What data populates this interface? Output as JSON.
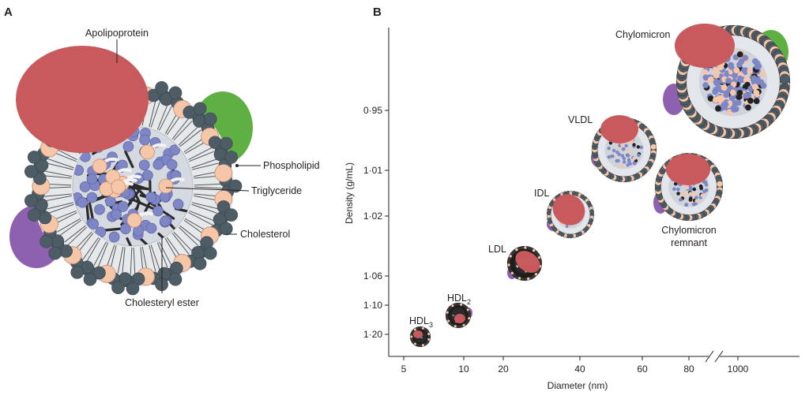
{
  "panels": {
    "a": "A",
    "b": "B"
  },
  "panel_a": {
    "labels": {
      "apolipoprotein": "Apolipoprotein",
      "phospholipid": "Phospholipid",
      "triglyceride": "Triglyceride",
      "cholesterol": "Cholesterol",
      "cholesteryl_ester": "Cholesteryl ester"
    }
  },
  "chart_data": {
    "type": "scatter",
    "xlabel": "Diameter (nm)",
    "ylabel": "Density (g/mL)",
    "x_ticks": [
      "5",
      "10",
      "20",
      "40",
      "60",
      "80",
      "1000"
    ],
    "y_ticks": [
      "0·95",
      "1·01",
      "1·02",
      "1·06",
      "1·10",
      "1·20"
    ],
    "x_scale": "log, broken axis",
    "points": [
      {
        "name": "HDL",
        "sub": "3",
        "diameter_nm": 6,
        "density": 1.2
      },
      {
        "name": "HDL",
        "sub": "2",
        "diameter_nm": 10,
        "density": 1.12
      },
      {
        "name": "LDL",
        "sub": "",
        "diameter_nm": 22,
        "density": 1.06
      },
      {
        "name": "IDL",
        "sub": "",
        "diameter_nm": 35,
        "density": 1.02
      },
      {
        "name": "VLDL",
        "sub": "",
        "diameter_nm": 55,
        "density": 1.0
      },
      {
        "name": "Chylomicron remnant",
        "sub": "",
        "diameter_nm": 75,
        "density": 1.01
      },
      {
        "name": "Chylomicron",
        "sub": "",
        "diameter_nm": 1000,
        "density": 0.93
      }
    ],
    "remnant_label_lines": [
      "Chylomicron",
      "remnant"
    ]
  },
  "colors": {
    "apolipoprotein": "#c85a5e",
    "phospholipid_head": "#4e5c66",
    "cholesterol": "#f6c6a8",
    "triglyceride": "#7f86c6",
    "green_protein": "#5fb043",
    "purple_protein": "#8e61b0",
    "core_bg": "#dfe3e8"
  }
}
